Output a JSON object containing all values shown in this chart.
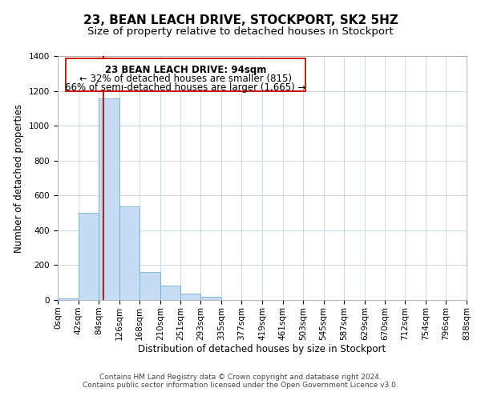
{
  "title": "23, BEAN LEACH DRIVE, STOCKPORT, SK2 5HZ",
  "subtitle": "Size of property relative to detached houses in Stockport",
  "xlabel": "Distribution of detached houses by size in Stockport",
  "ylabel": "Number of detached properties",
  "bar_edges": [
    0,
    42,
    84,
    126,
    168,
    210,
    251,
    293,
    335,
    377,
    419,
    461,
    503,
    545,
    587,
    629,
    670,
    712,
    754,
    796,
    838
  ],
  "bar_heights": [
    10,
    500,
    1155,
    535,
    160,
    82,
    35,
    18,
    0,
    0,
    0,
    0,
    0,
    0,
    0,
    0,
    0,
    0,
    0,
    0
  ],
  "bar_color": "#c5ddf4",
  "bar_edge_color": "#7aabcc",
  "property_line_x": 94,
  "property_line_color": "#cc0000",
  "ylim": [
    0,
    1400
  ],
  "yticks": [
    0,
    200,
    400,
    600,
    800,
    1000,
    1200,
    1400
  ],
  "tick_labels": [
    "0sqm",
    "42sqm",
    "84sqm",
    "126sqm",
    "168sqm",
    "210sqm",
    "251sqm",
    "293sqm",
    "335sqm",
    "377sqm",
    "419sqm",
    "461sqm",
    "503sqm",
    "545sqm",
    "587sqm",
    "629sqm",
    "670sqm",
    "712sqm",
    "754sqm",
    "796sqm",
    "838sqm"
  ],
  "annotation_line1": "23 BEAN LEACH DRIVE: 94sqm",
  "annotation_line2": "← 32% of detached houses are smaller (815)",
  "annotation_line3": "66% of semi-detached houses are larger (1,665) →",
  "footer_line1": "Contains HM Land Registry data © Crown copyright and database right 2024.",
  "footer_line2": "Contains public sector information licensed under the Open Government Licence v3.0.",
  "background_color": "#ffffff",
  "grid_color": "#ccd9e8",
  "title_fontsize": 11,
  "subtitle_fontsize": 9.5,
  "axis_label_fontsize": 8.5,
  "tick_fontsize": 7.5,
  "annotation_fontsize": 8.5,
  "footer_fontsize": 6.5
}
